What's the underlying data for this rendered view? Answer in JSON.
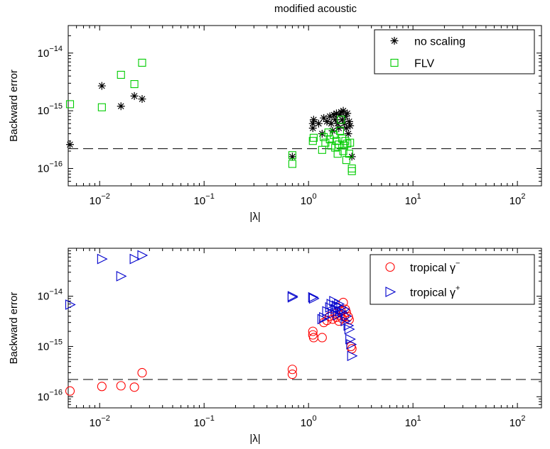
{
  "title": "modified acoustic",
  "chart_data": [
    {
      "type": "scatter",
      "xlabel": "|λ|",
      "ylabel": "Backward error",
      "xscale": "log",
      "yscale": "log",
      "xlim": [
        0.005,
        170
      ],
      "ylim": [
        5e-17,
        3e-14
      ],
      "xticks": [
        {
          "value": 0.01,
          "base": "10",
          "exp": "−2"
        },
        {
          "value": 0.1,
          "base": "10",
          "exp": "−1"
        },
        {
          "value": 1,
          "base": "10",
          "exp": "0"
        },
        {
          "value": 10,
          "base": "10",
          "exp": "1"
        },
        {
          "value": 100,
          "base": "10",
          "exp": "2"
        }
      ],
      "yticks": [
        {
          "value": 1e-16,
          "base": "10",
          "exp": "−16"
        },
        {
          "value": 1e-15,
          "base": "10",
          "exp": "−15"
        },
        {
          "value": 1e-14,
          "base": "10",
          "exp": "−14"
        }
      ],
      "reference_line": 2.2e-16,
      "legend": {
        "position": "top-right"
      },
      "series": [
        {
          "name": "no scaling",
          "marker": "asterisk",
          "color": "#000000",
          "points": [
            [
              0.0052,
              2.6e-16
            ],
            [
              0.0105,
              2.7e-15
            ],
            [
              0.016,
              1.2e-15
            ],
            [
              0.0215,
              1.8e-15
            ],
            [
              0.0255,
              1.6e-15
            ],
            [
              0.7,
              1.6e-16
            ],
            [
              1.1,
              5e-16
            ],
            [
              1.1,
              6e-16
            ],
            [
              1.12,
              7e-16
            ],
            [
              1.25,
              6e-16
            ],
            [
              1.35,
              4e-16
            ],
            [
              1.4,
              7.5e-16
            ],
            [
              1.5,
              6.5e-16
            ],
            [
              1.6,
              8e-16
            ],
            [
              1.65,
              6e-16
            ],
            [
              1.7,
              4.5e-16
            ],
            [
              1.75,
              8.5e-16
            ],
            [
              1.8,
              7e-16
            ],
            [
              1.85,
              9e-16
            ],
            [
              1.9,
              6e-16
            ],
            [
              1.95,
              5e-16
            ],
            [
              2.0,
              8.5e-16
            ],
            [
              2.05,
              9.5e-16
            ],
            [
              2.1,
              7e-16
            ],
            [
              2.15,
              1e-15
            ],
            [
              2.2,
              6e-16
            ],
            [
              2.25,
              8e-16
            ],
            [
              2.3,
              5e-16
            ],
            [
              2.35,
              9e-16
            ],
            [
              2.4,
              4e-16
            ],
            [
              2.45,
              6.5e-16
            ],
            [
              2.5,
              5.5e-16
            ],
            [
              2.6,
              1.6e-16
            ]
          ]
        },
        {
          "name": "FLV",
          "marker": "square",
          "color": "#00cc00",
          "points": [
            [
              0.0052,
              1.3e-15
            ],
            [
              0.0105,
              1.15e-15
            ],
            [
              0.016,
              4.2e-15
            ],
            [
              0.0215,
              2.9e-15
            ],
            [
              0.0255,
              6.8e-15
            ],
            [
              0.7,
              1.7e-16
            ],
            [
              0.7,
              1.2e-16
            ],
            [
              1.1,
              3e-16
            ],
            [
              1.12,
              3.4e-16
            ],
            [
              1.35,
              2.1e-16
            ],
            [
              1.4,
              3.5e-16
            ],
            [
              1.45,
              2.8e-16
            ],
            [
              1.55,
              4.2e-16
            ],
            [
              1.6,
              3.2e-16
            ],
            [
              1.65,
              2.5e-16
            ],
            [
              1.75,
              3.8e-16
            ],
            [
              1.8,
              2.3e-16
            ],
            [
              1.85,
              3e-16
            ],
            [
              1.9,
              1.8e-16
            ],
            [
              1.95,
              2.6e-16
            ],
            [
              2.0,
              4.5e-16
            ],
            [
              2.05,
              7e-16
            ],
            [
              2.1,
              3.3e-16
            ],
            [
              2.15,
              2e-16
            ],
            [
              2.2,
              2.5e-16
            ],
            [
              2.25,
              3e-16
            ],
            [
              2.3,
              1.4e-16
            ],
            [
              2.35,
              2.7e-16
            ],
            [
              2.45,
              1.8e-16
            ],
            [
              2.5,
              2.8e-16
            ],
            [
              2.6,
              1e-16
            ],
            [
              2.6,
              9e-17
            ]
          ]
        }
      ]
    },
    {
      "type": "scatter",
      "xlabel": "|λ|",
      "ylabel": "Backward error",
      "xscale": "log",
      "yscale": "log",
      "xlim": [
        0.005,
        170
      ],
      "ylim": [
        6e-17,
        9e-14
      ],
      "xticks": [
        {
          "value": 0.01,
          "base": "10",
          "exp": "−2"
        },
        {
          "value": 0.1,
          "base": "10",
          "exp": "−1"
        },
        {
          "value": 1,
          "base": "10",
          "exp": "0"
        },
        {
          "value": 10,
          "base": "10",
          "exp": "1"
        },
        {
          "value": 100,
          "base": "10",
          "exp": "2"
        }
      ],
      "yticks": [
        {
          "value": 1e-16,
          "base": "10",
          "exp": "−16"
        },
        {
          "value": 1e-15,
          "base": "10",
          "exp": "−15"
        },
        {
          "value": 1e-14,
          "base": "10",
          "exp": "−14"
        }
      ],
      "reference_line": 2.2e-16,
      "legend": {
        "position": "top-right"
      },
      "series": [
        {
          "name": "tropical γ",
          "name_sup": "−",
          "marker": "circle",
          "color": "#ff0000",
          "points": [
            [
              0.0052,
              1.3e-16
            ],
            [
              0.0105,
              1.6e-16
            ],
            [
              0.016,
              1.65e-16
            ],
            [
              0.0215,
              1.55e-16
            ],
            [
              0.0255,
              3e-16
            ],
            [
              0.7,
              3.5e-16
            ],
            [
              0.7,
              2.8e-16
            ],
            [
              1.1,
              2e-15
            ],
            [
              1.1,
              1.7e-15
            ],
            [
              1.12,
              1.5e-15
            ],
            [
              1.35,
              1.5e-15
            ],
            [
              1.4,
              3e-15
            ],
            [
              1.5,
              3.3e-15
            ],
            [
              1.6,
              4e-15
            ],
            [
              1.7,
              3.5e-15
            ],
            [
              1.8,
              4.5e-15
            ],
            [
              1.85,
              3.8e-15
            ],
            [
              1.95,
              3.2e-15
            ],
            [
              2.0,
              4.2e-15
            ],
            [
              2.05,
              5e-15
            ],
            [
              2.1,
              3.6e-15
            ],
            [
              2.15,
              7.5e-15
            ],
            [
              2.2,
              4e-15
            ],
            [
              2.25,
              5.5e-15
            ],
            [
              2.3,
              4.8e-15
            ],
            [
              2.4,
              3.9e-15
            ],
            [
              2.45,
              3.4e-15
            ],
            [
              2.55,
              1e-15
            ],
            [
              2.6,
              9e-16
            ]
          ]
        },
        {
          "name": "tropical γ",
          "name_sup": "+",
          "marker": "triangle-right",
          "color": "#0000cc",
          "points": [
            [
              0.0052,
              6.8e-15
            ],
            [
              0.0105,
              5.5e-14
            ],
            [
              0.016,
              2.5e-14
            ],
            [
              0.0215,
              5.5e-14
            ],
            [
              0.0255,
              6.5e-14
            ],
            [
              0.7,
              1e-14
            ],
            [
              0.7,
              9.5e-15
            ],
            [
              1.1,
              9.5e-15
            ],
            [
              1.12,
              9e-15
            ],
            [
              1.35,
              3.5e-15
            ],
            [
              1.4,
              3.8e-15
            ],
            [
              1.5,
              5e-15
            ],
            [
              1.6,
              6e-15
            ],
            [
              1.65,
              7e-15
            ],
            [
              1.7,
              4.5e-15
            ],
            [
              1.75,
              8e-15
            ],
            [
              1.8,
              5.5e-15
            ],
            [
              1.85,
              6.5e-15
            ],
            [
              1.9,
              4.2e-15
            ],
            [
              1.95,
              7e-15
            ],
            [
              2.0,
              5e-15
            ],
            [
              2.05,
              6e-15
            ],
            [
              2.1,
              4.8e-15
            ],
            [
              2.2,
              5.5e-15
            ],
            [
              2.25,
              3.2e-15
            ],
            [
              2.3,
              4e-15
            ],
            [
              2.4,
              2.6e-15
            ],
            [
              2.45,
              2.2e-15
            ],
            [
              2.5,
              1.4e-15
            ],
            [
              2.55,
              1.1e-15
            ],
            [
              2.6,
              6.5e-16
            ]
          ]
        }
      ]
    }
  ]
}
